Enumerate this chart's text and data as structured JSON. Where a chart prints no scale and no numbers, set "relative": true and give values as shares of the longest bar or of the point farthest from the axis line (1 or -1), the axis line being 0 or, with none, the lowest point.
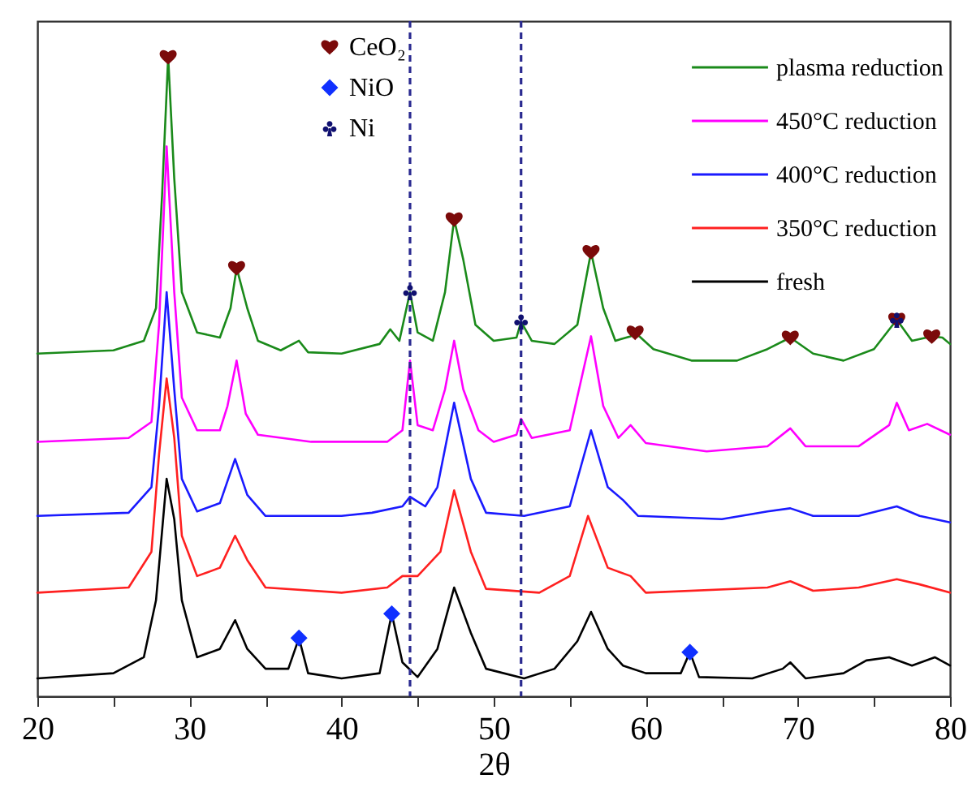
{
  "chart_data": {
    "type": "line",
    "xlabel": "2θ",
    "relative": true,
    "tick_labels": "x",
    "legend": "top right",
    "xlim": [
      20,
      80
    ],
    "xticks": [
      20,
      {
        "value": 25,
        "label": null
      },
      30,
      {
        "value": 35,
        "label": null
      },
      40,
      {
        "value": 45,
        "label": null
      },
      50,
      {
        "value": 55,
        "label": null
      },
      60,
      {
        "value": 65,
        "label": null
      },
      70,
      {
        "value": 75,
        "label": null
      },
      80
    ],
    "ref_lines": [
      {
        "axis": "x",
        "value": 44.5,
        "color": "#2a2a90",
        "line_style": "dashed"
      },
      {
        "axis": "x",
        "value": 51.8,
        "color": "#2a2a90",
        "line_style": "dashed"
      }
    ],
    "series": [
      {
        "name": "plasma reduction",
        "color": "#1a8a1a",
        "x": [
          20,
          25,
          27,
          27.8,
          28.2,
          28.6,
          29,
          29.5,
          30.5,
          32,
          32.7,
          33.1,
          33.8,
          34.5,
          36,
          37.2,
          37.8,
          40,
          42.5,
          43.2,
          43.8,
          44.5,
          45,
          46,
          46.8,
          47.4,
          48,
          48.8,
          50,
          51.5,
          51.8,
          52.5,
          54,
          55.5,
          56.4,
          57.2,
          58,
          59,
          59.3,
          60.5,
          63,
          66,
          68,
          69.5,
          71,
          73,
          75,
          76.5,
          77.5,
          78.8,
          79.5,
          80
        ],
        "values": [
          0.536,
          0.541,
          0.556,
          0.607,
          0.784,
          1,
          0.81,
          0.632,
          0.569,
          0.561,
          0.607,
          0.67,
          0.607,
          0.556,
          0.541,
          0.556,
          0.538,
          0.536,
          0.551,
          0.574,
          0.556,
          0.632,
          0.569,
          0.556,
          0.632,
          0.746,
          0.683,
          0.581,
          0.556,
          0.561,
          0.586,
          0.556,
          0.551,
          0.581,
          0.695,
          0.607,
          0.556,
          0.563,
          0.569,
          0.543,
          0.525,
          0.525,
          0.543,
          0.561,
          0.536,
          0.525,
          0.543,
          0.589,
          0.556,
          0.563,
          0.561,
          0.551
        ]
      },
      {
        "name": "450°C reduction",
        "color": "#ff00ff",
        "x": [
          20,
          26,
          27.5,
          28,
          28.5,
          29,
          29.5,
          30.5,
          32,
          32.5,
          33.1,
          33.7,
          34.5,
          38,
          43,
          44,
          44.5,
          45,
          46,
          46.8,
          47.4,
          48,
          49,
          50,
          51.5,
          51.8,
          52.5,
          55,
          56.4,
          57.2,
          58.2,
          59,
          60,
          64,
          68,
          69.5,
          70.5,
          74,
          76,
          76.5,
          77.3,
          78.5,
          80
        ],
        "values": [
          0.398,
          0.404,
          0.429,
          0.581,
          0.86,
          0.632,
          0.467,
          0.416,
          0.416,
          0.454,
          0.525,
          0.442,
          0.409,
          0.398,
          0.398,
          0.416,
          0.525,
          0.424,
          0.416,
          0.48,
          0.556,
          0.48,
          0.416,
          0.398,
          0.409,
          0.434,
          0.404,
          0.416,
          0.563,
          0.454,
          0.404,
          0.424,
          0.396,
          0.383,
          0.391,
          0.419,
          0.391,
          0.391,
          0.424,
          0.459,
          0.416,
          0.426,
          0.409
        ]
      },
      {
        "name": "400°C reduction",
        "color": "#1a1aff",
        "x": [
          20,
          26,
          27.5,
          28,
          28.5,
          29,
          29.5,
          30.5,
          32,
          33,
          33.8,
          35,
          40,
          42,
          44,
          44.5,
          45.5,
          46.3,
          47.4,
          48.5,
          49.5,
          52,
          55,
          56.4,
          57.5,
          58.5,
          59.5,
          65,
          68,
          69.5,
          71,
          74,
          76.5,
          78,
          80
        ],
        "values": [
          0.282,
          0.287,
          0.327,
          0.454,
          0.632,
          0.48,
          0.34,
          0.289,
          0.302,
          0.371,
          0.315,
          0.282,
          0.282,
          0.287,
          0.297,
          0.312,
          0.297,
          0.327,
          0.459,
          0.34,
          0.287,
          0.282,
          0.297,
          0.416,
          0.327,
          0.307,
          0.282,
          0.277,
          0.289,
          0.294,
          0.282,
          0.282,
          0.297,
          0.282,
          0.272
        ]
      },
      {
        "name": "350°C reduction",
        "color": "#ff2020",
        "x": [
          20,
          26,
          27.5,
          28,
          28.5,
          29,
          29.5,
          30.5,
          32,
          33,
          33.8,
          35,
          40,
          43,
          44,
          45,
          46.5,
          47.4,
          48.5,
          49.5,
          53,
          55,
          56.2,
          57.5,
          59,
          60,
          68,
          69.5,
          71,
          74,
          76.5,
          78,
          80
        ],
        "values": [
          0.162,
          0.17,
          0.226,
          0.378,
          0.497,
          0.404,
          0.251,
          0.188,
          0.201,
          0.251,
          0.213,
          0.17,
          0.162,
          0.17,
          0.188,
          0.188,
          0.226,
          0.322,
          0.226,
          0.168,
          0.162,
          0.188,
          0.282,
          0.201,
          0.188,
          0.162,
          0.17,
          0.18,
          0.165,
          0.17,
          0.183,
          0.175,
          0.162
        ]
      },
      {
        "name": "fresh",
        "color": "#000000",
        "x": [
          20,
          25,
          27,
          27.8,
          28.5,
          29,
          29.5,
          30.5,
          32,
          33,
          33.8,
          35,
          36.5,
          37.2,
          37.8,
          40,
          42.5,
          43.3,
          44,
          45,
          46.3,
          47.4,
          48.5,
          49.5,
          52,
          54,
          55.5,
          56.4,
          57.5,
          58.5,
          60,
          62.3,
          62.9,
          63.5,
          67,
          69,
          69.5,
          70.5,
          73,
          74.5,
          76,
          77.5,
          79,
          80
        ],
        "values": [
          0.028,
          0.036,
          0.061,
          0.15,
          0.34,
          0.277,
          0.15,
          0.061,
          0.074,
          0.119,
          0.074,
          0.043,
          0.043,
          0.091,
          0.036,
          0.028,
          0.036,
          0.129,
          0.053,
          0.03,
          0.074,
          0.17,
          0.099,
          0.043,
          0.028,
          0.043,
          0.086,
          0.132,
          0.074,
          0.048,
          0.036,
          0.036,
          0.069,
          0.03,
          0.028,
          0.043,
          0.053,
          0.028,
          0.036,
          0.056,
          0.061,
          0.048,
          0.061,
          0.048
        ]
      },
      {
        "name": "CeO₂",
        "type": "scatter",
        "color": "#7b0a0a",
        "x": [
          28.6,
          33.1,
          47.4,
          56.4,
          59.3,
          69.5,
          76.5,
          78.8
        ],
        "values": [
          1,
          0.67,
          0.746,
          0.695,
          0.569,
          0.561,
          0.589,
          0.563
        ]
      },
      {
        "name": "NiO",
        "type": "scatter",
        "marker": "diamond",
        "color": "#1030ff",
        "x": [
          37.2,
          43.3,
          62.9
        ],
        "values": [
          0.091,
          0.129,
          0.069
        ]
      },
      {
        "name": "Ni",
        "type": "scatter",
        "color": "#101070",
        "x": [
          44.5,
          51.8,
          76.5
        ],
        "values": [
          0.632,
          0.586,
          0.589
        ]
      }
    ]
  }
}
